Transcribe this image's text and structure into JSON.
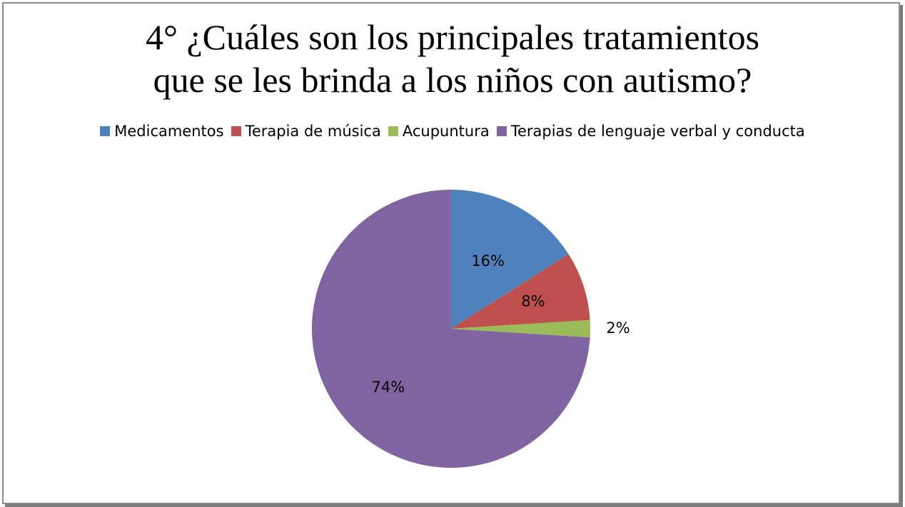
{
  "chart_data": {
    "type": "pie",
    "title_lines": [
      "4° ¿Cuáles son los principales tratamientos",
      "que se les brinda a los niños con autismo?"
    ],
    "legend_position": "top",
    "categories": [
      "Medicamentos",
      "Terapia de música",
      "Acupuntura",
      "Terapias de lenguaje verbal y conducta"
    ],
    "values": [
      16,
      8,
      2,
      74
    ],
    "labels": [
      "16%",
      "8%",
      "2%",
      "74%"
    ],
    "colors": [
      "#4f81bd",
      "#c0504d",
      "#9bbb59",
      "#8064a2"
    ]
  }
}
